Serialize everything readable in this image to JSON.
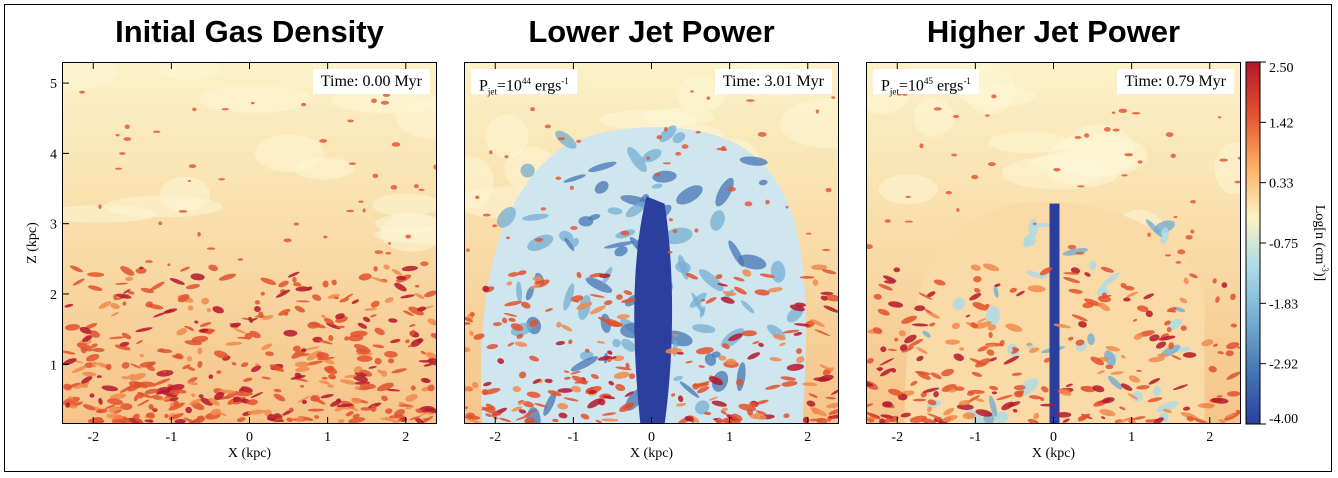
{
  "chart_data": [
    {
      "type": "heatmap",
      "title": "Initial Gas Density",
      "time_label": "Time: 0.00 Myr",
      "jet_label": "",
      "xlabel": "X (kpc)",
      "ylabel": "Z (kpc)",
      "xlim": [
        -2.4,
        2.4
      ],
      "ylim": [
        0.15,
        5.3
      ],
      "xticks": [
        "-2",
        "-1",
        "0",
        "1",
        "2"
      ],
      "yticks": [
        "1",
        "2",
        "3",
        "4",
        "5"
      ],
      "features": [
        "dense clumpy disk below z~2 kpc",
        "uniform warm halo above"
      ]
    },
    {
      "type": "heatmap",
      "title": "Lower Jet Power",
      "time_label": "Time: 3.01 Myr",
      "jet_label": {
        "p": "P",
        "psub": "jet",
        "eq": "=10",
        "exp": "44",
        "unit": " ergs",
        "uexp": "-1"
      },
      "xlabel": "X (kpc)",
      "ylabel": "",
      "xlim": [
        -2.4,
        2.4
      ],
      "ylim": [
        0.15,
        5.3
      ],
      "xticks": [
        "-2",
        "-1",
        "0",
        "1",
        "2"
      ],
      "yticks": [],
      "features": [
        "broad low-density jet cocoon up to z~4.4 kpc"
      ]
    },
    {
      "type": "heatmap",
      "title": "Higher Jet Power",
      "time_label": "Time: 0.79 Myr",
      "jet_label": {
        "p": "P",
        "psub": "jet",
        "eq": "=10",
        "exp": "45",
        "unit": " ergs",
        "uexp": "-1"
      },
      "xlabel": "X (kpc)",
      "ylabel": "",
      "xlim": [
        -2.4,
        2.4
      ],
      "ylim": [
        0.15,
        5.3
      ],
      "xticks": [
        "-2",
        "-1",
        "0",
        "1",
        "2"
      ],
      "yticks": [],
      "features": [
        "narrow collimated jet with bubble up to z~3.3 kpc"
      ]
    }
  ],
  "colorbar": {
    "label": "Log[n (cm",
    "label_exp": "-3",
    "label_close": ")]",
    "ticks": [
      "2.50",
      "1.42",
      "0.33",
      "-0.75",
      "-1.83",
      "-2.92",
      "-4.00"
    ],
    "range": [
      -4.0,
      2.5
    ],
    "colors": [
      "#2b3f9e",
      "#4575b4",
      "#74add1",
      "#abd9e9",
      "#fbf3c3",
      "#fdae61",
      "#e2512e",
      "#b5162b"
    ]
  }
}
